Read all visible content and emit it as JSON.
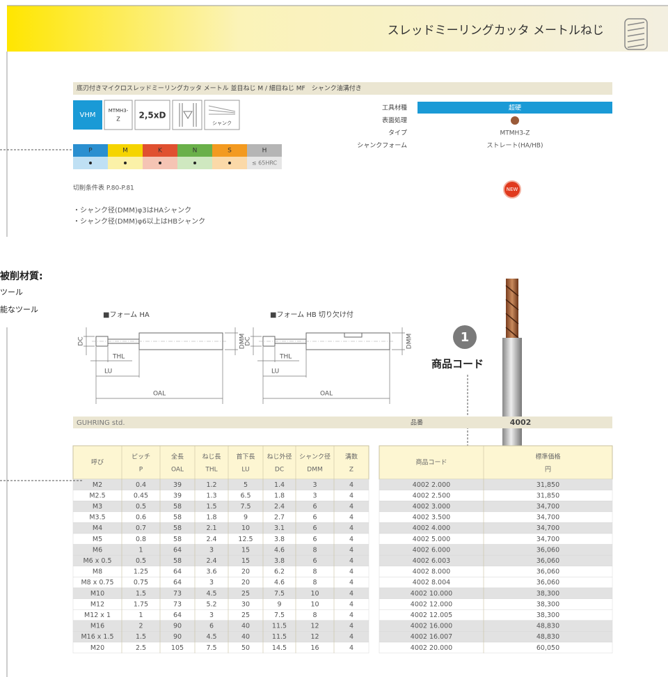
{
  "header": {
    "title": "スレッドミーリングカッタ メートルねじ"
  },
  "product": {
    "title": "底刃付きマイクロスレッドミーリングカッタ メートル 並目ねじ M / 細目ねじ MF　シャンク油溝付き",
    "badges": {
      "material": "VHM",
      "type": [
        "MTMH3-",
        "Z"
      ],
      "length": "2,5xD",
      "shank": "シャンク"
    }
  },
  "specs": [
    {
      "label": "工具材種",
      "value": "超硬"
    },
    {
      "label": "表面処理"
    },
    {
      "label": "タイプ",
      "value": "MTMH3-Z"
    },
    {
      "label": "シャンクフォーム",
      "value": "ストレート(HA/HB)"
    }
  ],
  "materials": {
    "groups": [
      "P",
      "M",
      "K",
      "N",
      "S",
      "H"
    ],
    "limit": "≤ 65HRC"
  },
  "cutting_conditions": "切削条件表 P.80-P.81",
  "notes": [
    "・シャンク径(DMM)φ3はHAシャンク",
    "・シャンク径(DMM)φ6以上はHBシャンク"
  ],
  "new_badge": "NEW",
  "side_text": [
    "被削材質:",
    "ツール",
    "能なツール"
  ],
  "diagrams": [
    {
      "title": "■フォーム HA",
      "labels": {
        "dc": "DC",
        "dmm": "DMM",
        "thl": "THL",
        "lu": "LU",
        "oal": "OAL"
      }
    },
    {
      "title": "■フォーム HB 切り欠け付",
      "labels": {
        "dc": "DC",
        "dmm": "DMM",
        "thl": "THL",
        "lu": "LU",
        "oal": "OAL"
      }
    }
  ],
  "callout": {
    "number": "1",
    "label": "商品コード"
  },
  "series_bar": {
    "left": "GUHRING std.",
    "key": "品番",
    "value": "4002"
  },
  "table": {
    "header": [
      [
        "呼び"
      ],
      [
        "ピッチ",
        "P"
      ],
      [
        "全長",
        "OAL"
      ],
      [
        "ねじ長",
        "THL"
      ],
      [
        "首下長",
        "LU"
      ],
      [
        "ねじ外径",
        "DC"
      ],
      [
        "シャンク径",
        "DMM"
      ],
      [
        "溝数",
        "Z"
      ],
      [
        "商品コード"
      ],
      [
        "標準価格",
        "円"
      ]
    ],
    "rows": [
      [
        "M2",
        0.4,
        39,
        1.2,
        5,
        1.4,
        3,
        4,
        "4002 2.000",
        "31,850"
      ],
      [
        "M2.5",
        0.45,
        39,
        1.3,
        6.5,
        1.8,
        3,
        4,
        "4002 2.500",
        "31,850"
      ],
      [
        "M3",
        0.5,
        58,
        1.5,
        7.5,
        2.4,
        6,
        4,
        "4002 3.000",
        "34,700"
      ],
      [
        "M3.5",
        0.6,
        58,
        1.8,
        9,
        2.7,
        6,
        4,
        "4002 3.500",
        "34,700"
      ],
      [
        "M4",
        0.7,
        58,
        2.1,
        10,
        3.1,
        6,
        4,
        "4002 4.000",
        "34,700"
      ],
      [
        "M5",
        0.8,
        58,
        2.4,
        12.5,
        3.8,
        6,
        4,
        "4002 5.000",
        "34,700"
      ],
      [
        "M6",
        1,
        64,
        3,
        15,
        4.6,
        8,
        4,
        "4002 6.000",
        "36,060"
      ],
      [
        "M6 x 0.5",
        0.5,
        58,
        2.4,
        15,
        3.8,
        6,
        4,
        "4002 6.003",
        "36,060"
      ],
      [
        "M8",
        1.25,
        64,
        3.6,
        20,
        6.2,
        8,
        4,
        "4002 8.000",
        "36,060"
      ],
      [
        "M8 x 0.75",
        0.75,
        64,
        3,
        20,
        4.6,
        8,
        4,
        "4002 8.004",
        "36,060"
      ],
      [
        "M10",
        1.5,
        73,
        4.5,
        25,
        7.5,
        10,
        4,
        "4002 10.000",
        "38,300"
      ],
      [
        "M12",
        1.75,
        73,
        5.2,
        30,
        9,
        10,
        4,
        "4002 12.000",
        "38,300"
      ],
      [
        "M12 x 1",
        1,
        64,
        3,
        25,
        7.5,
        8,
        4,
        "4002 12.005",
        "38,300"
      ],
      [
        "M16",
        2,
        90,
        6,
        40,
        11.5,
        12,
        4,
        "4002 16.000",
        "48,830"
      ],
      [
        "M16 x 1.5",
        1.5,
        90,
        4.5,
        40,
        11.5,
        12,
        4,
        "4002 16.007",
        "48,830"
      ],
      [
        "M20",
        2.5,
        105,
        7.5,
        50,
        14.5,
        16,
        4,
        "4002 20.000",
        "60,050"
      ]
    ]
  }
}
